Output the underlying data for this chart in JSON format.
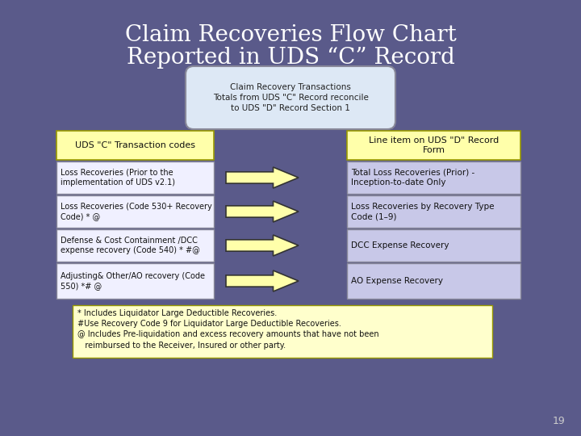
{
  "title_line1": "Claim Recoveries Flow Chart",
  "title_line2": "Reported in UDS “C” Record",
  "title_color": "#ffffff",
  "bg_color": "#5a5a8a",
  "top_oval_text": "Claim Recovery Transactions\nTotals from UDS \"C\" Record reconcile\nto UDS \"D\" Record Section 1",
  "top_oval_bg": "#dde8f5",
  "top_oval_border": "#888899",
  "header_left": "UDS \"C\" Transaction codes",
  "header_right": "Line item on UDS \"D\" Record\nForm",
  "header_bg": "#ffffaa",
  "header_border": "#999900",
  "left_rows": [
    "Loss Recoveries (Prior to the\nimplementation of UDS v2.1)",
    "Loss Recoveries (Code 530+ Recovery\nCode) * @",
    "Defense & Cost Containment /DCC\nexpense recovery (Code 540) * #@",
    "Adjusting& Other/AO recovery (Code\n550) *# @"
  ],
  "right_rows": [
    "Total Loss Recoveries (Prior) -\nInception-to-date Only",
    "Loss Recoveries by Recovery Type\nCode (1–9)",
    "DCC Expense Recovery",
    "AO Expense Recovery"
  ],
  "row_left_bg": "#f0f0ff",
  "row_right_bg": "#c8c8e8",
  "row_border": "#888899",
  "arrow_fill": "#ffffaa",
  "arrow_edge": "#333333",
  "footnote": "* Includes Liquidator Large Deductible Recoveries.\n#Use Recovery Code 9 for Liquidator Large Deductible Recoveries.\n@ Includes Pre-liquidation and excess recovery amounts that have not been\n   reimbursed to the Receiver, Insured or other party.",
  "footnote_bg": "#ffffcc",
  "footnote_border": "#999900",
  "page_number": "19"
}
